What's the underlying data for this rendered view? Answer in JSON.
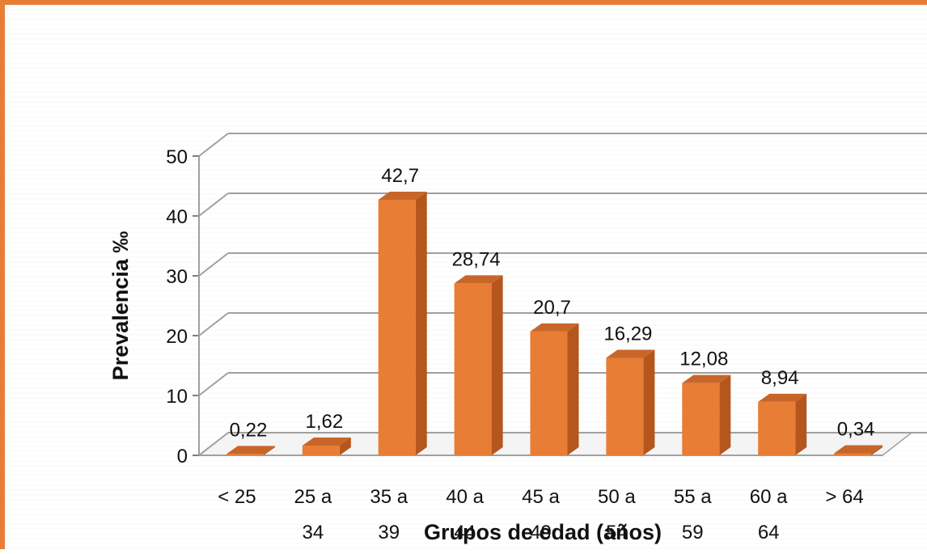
{
  "chart_data": {
    "type": "bar",
    "categories": [
      [
        "< 25"
      ],
      [
        "25 a",
        "34"
      ],
      [
        "35 a",
        "39"
      ],
      [
        "40 a",
        "44"
      ],
      [
        "45 a",
        "49"
      ],
      [
        "50 a",
        "54"
      ],
      [
        "55 a",
        "59"
      ],
      [
        "60 a",
        "64"
      ],
      [
        "> 64"
      ]
    ],
    "values": [
      0.22,
      1.62,
      42.7,
      28.74,
      20.7,
      16.29,
      12.08,
      8.94,
      0.34
    ],
    "data_labels": [
      "0,22",
      "1,62",
      "42,7",
      "28,74",
      "20,7",
      "16,29",
      "12,08",
      "8,94",
      "0,34"
    ],
    "xlabel": "Grupos de edad (años)",
    "ylabel": "Prevalencia ‰",
    "ylim": [
      0,
      50
    ],
    "yticks": [
      0,
      10,
      20,
      30,
      40,
      50
    ],
    "style": "3d-column",
    "grid": true,
    "colors": {
      "bar_front": "#E87D35",
      "bar_side": "#B5561D",
      "bar_top": "#C8662A",
      "frame": "#E87D35",
      "grid": "#A0A0A0"
    }
  }
}
